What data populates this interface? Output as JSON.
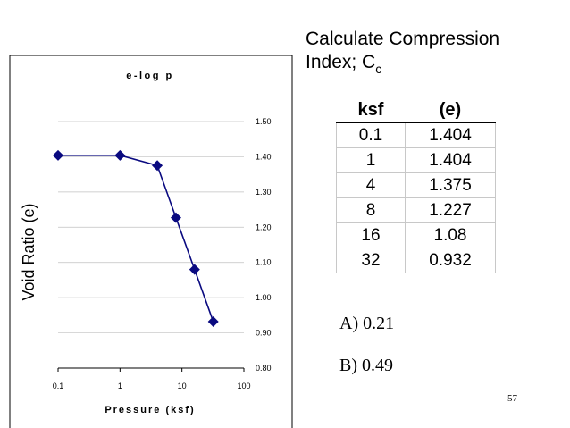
{
  "heading": {
    "line1": "Calculate Compression",
    "line2": "Index; C",
    "sub": "c"
  },
  "table": {
    "headers": [
      "ksf",
      "(e)"
    ],
    "rows": [
      [
        "0.1",
        "1.404"
      ],
      [
        "1",
        "1.404"
      ],
      [
        "4",
        "1.375"
      ],
      [
        "8",
        "1.227"
      ],
      [
        "16",
        "1.08"
      ],
      [
        "32",
        "0.932"
      ]
    ]
  },
  "answers": {
    "a": "A) 0.21",
    "b": "B) 0.49"
  },
  "page_number": "57",
  "colors": {
    "series": "#0a0a80",
    "frame": "#000000",
    "grid": "#c0c0c0"
  },
  "chart_data": {
    "type": "line",
    "title": "e-log p",
    "xlabel": "Pressure (ksf)",
    "ylabel": "Void Ratio (e)",
    "xscale": "log",
    "xlim": [
      0.1,
      100
    ],
    "ylim": [
      0.8,
      1.5
    ],
    "x_ticks": [
      "0.1",
      "1",
      "10",
      "100"
    ],
    "y_ticks": [
      "0.80",
      "0.90",
      "1.00",
      "1.10",
      "1.20",
      "1.30",
      "1.40",
      "1.50"
    ],
    "x": [
      0.1,
      1,
      4,
      8,
      16,
      32
    ],
    "y": [
      1.404,
      1.404,
      1.375,
      1.227,
      1.08,
      0.932
    ],
    "marker": "diamond",
    "grid": true
  }
}
